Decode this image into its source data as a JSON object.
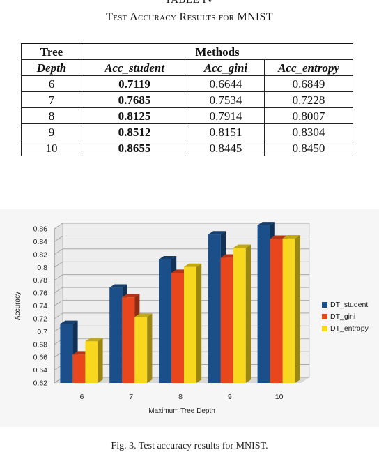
{
  "table": {
    "number": "TABLE IV",
    "title": "Test Accuracy Results for MNIST",
    "head": {
      "tree": "Tree",
      "depth": "Depth",
      "methods": "Methods",
      "cols": [
        "Acc_student",
        "Acc_gini",
        "Acc_entropy"
      ]
    },
    "rows": [
      {
        "depth": "6",
        "student": "0.7119",
        "gini": "0.6644",
        "entropy": "0.6849"
      },
      {
        "depth": "7",
        "student": "0.7685",
        "gini": "0.7534",
        "entropy": "0.7228"
      },
      {
        "depth": "8",
        "student": "0.8125",
        "gini": "0.7914",
        "entropy": "0.8007"
      },
      {
        "depth": "9",
        "student": "0.8512",
        "gini": "0.8151",
        "entropy": "0.8304"
      },
      {
        "depth": "10",
        "student": "0.8655",
        "gini": "0.8445",
        "entropy": "0.8450"
      }
    ]
  },
  "chart_data": {
    "type": "bar",
    "categories": [
      "6",
      "7",
      "8",
      "9",
      "10"
    ],
    "series": [
      {
        "name": "DT_student",
        "color": "#1b4f8a",
        "values": [
          0.7119,
          0.7685,
          0.8125,
          0.8512,
          0.8655
        ]
      },
      {
        "name": "DT_gini",
        "color": "#e8471d",
        "values": [
          0.6644,
          0.7534,
          0.7914,
          0.8151,
          0.8445
        ]
      },
      {
        "name": "DT_entropy",
        "color": "#f7d81e",
        "values": [
          0.6849,
          0.7228,
          0.8007,
          0.8304,
          0.845
        ]
      }
    ],
    "xlabel": "Maximum Tree Depth",
    "ylabel": "Accuracy",
    "ylim": [
      0.62,
      0.86
    ],
    "yticks": [
      "0.62",
      "0.64",
      "0.66",
      "0.68",
      "0.7",
      "0.72",
      "0.74",
      "0.76",
      "0.78",
      "0.8",
      "0.82",
      "0.84",
      "0.86"
    ],
    "grid": true,
    "legend_position": "right",
    "style": "3d"
  },
  "figure": {
    "caption": "Fig. 3. Test accuracy results for MNIST."
  }
}
